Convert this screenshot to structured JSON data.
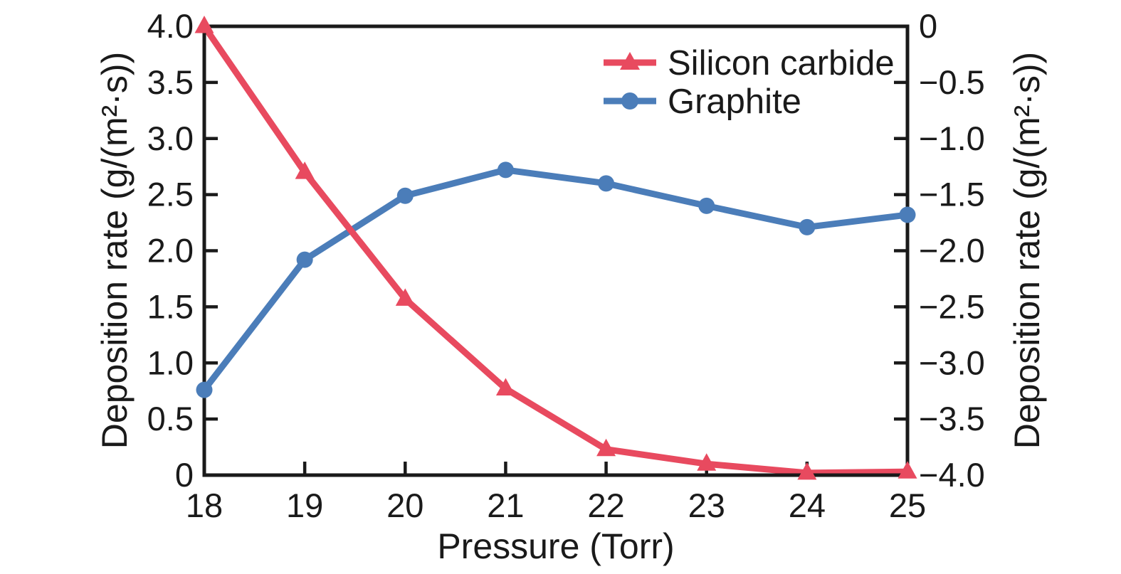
{
  "chart_data": {
    "type": "line",
    "title": "",
    "xlabel": "Pressure (Torr)",
    "ylabel_left": "Deposition rate (g/(m²·s))",
    "ylabel_right": "Deposition rate (g/(m²·s))",
    "x": [
      18,
      19,
      20,
      21,
      22,
      23,
      24,
      25
    ],
    "x_tick_labels": [
      "18",
      "19",
      "20",
      "21",
      "22",
      "23",
      "24",
      "25"
    ],
    "x_range": [
      18,
      25
    ],
    "y_left_range": [
      0,
      4.0
    ],
    "y_left_tick_values": [
      0,
      0.5,
      1.0,
      1.5,
      2.0,
      2.5,
      3.0,
      3.5,
      4.0
    ],
    "y_left_tick_labels": [
      "0",
      "0.5",
      "1.0",
      "1.5",
      "2.0",
      "2.5",
      "3.0",
      "3.5",
      "4.0"
    ],
    "y_right_range": [
      -4.0,
      0
    ],
    "y_right_tick_values": [
      -4.0,
      -3.5,
      -3.0,
      -2.5,
      -2.0,
      -1.5,
      -1.0,
      -0.5,
      0
    ],
    "y_right_tick_labels": [
      "−4.0",
      "−3.5",
      "−3.0",
      "−2.5",
      "−2.0",
      "−1.5",
      "−1.0",
      "−0.5",
      "0"
    ],
    "grid": false,
    "legend_position": "top-right-inside",
    "series": [
      {
        "name": "Silicon carbide",
        "axis": "left",
        "color": "#e84a5f",
        "marker": "triangle-up",
        "values": [
          4.0,
          2.7,
          1.57,
          0.77,
          0.23,
          0.1,
          0.02,
          0.03
        ]
      },
      {
        "name": "Graphite",
        "axis": "right",
        "color": "#4b7db9",
        "marker": "circle",
        "values": [
          -3.24,
          -2.08,
          -1.51,
          -1.28,
          -1.4,
          -1.6,
          -1.79,
          -1.68
        ]
      }
    ]
  },
  "colors": {
    "axis": "#1a1a1a",
    "background": "#ffffff"
  }
}
